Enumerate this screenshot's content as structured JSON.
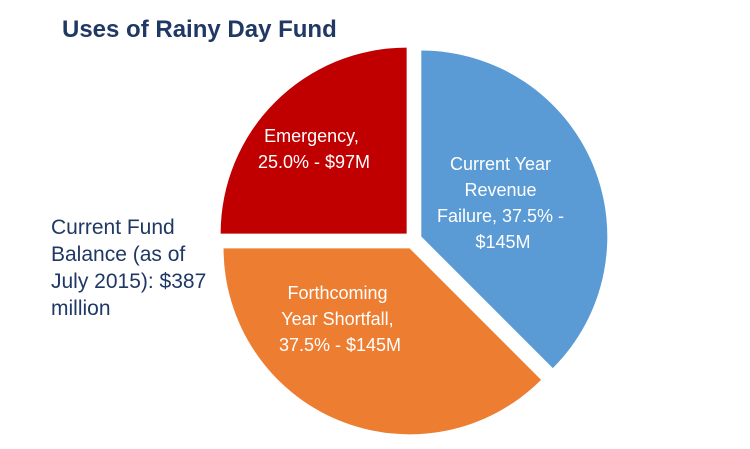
{
  "title": "Uses of Rainy Day Fund",
  "balance_note": "Current Fund Balance (as of July 2015): $387 million",
  "chart_data": {
    "type": "pie",
    "title": "Uses of Rainy Day Fund",
    "slices": [
      {
        "name": "Current Year Revenue Failure",
        "percent": 37.5,
        "value_m": 145,
        "label_lines": [
          "Current Year",
          "Revenue",
          "Failure, 37.5% -",
          "$145M"
        ],
        "color": "#5b9bd5"
      },
      {
        "name": "Forthcoming Year Shortfall",
        "percent": 37.5,
        "value_m": 145,
        "label_lines": [
          "Forthcoming",
          "Year Shortfall,",
          "37.5% - $145M"
        ],
        "color": "#ed7d31"
      },
      {
        "name": "Emergency",
        "percent": 25.0,
        "value_m": 97,
        "label_lines": [
          "Emergency,",
          "25.0% - $97M"
        ],
        "color": "#c00000"
      }
    ]
  }
}
